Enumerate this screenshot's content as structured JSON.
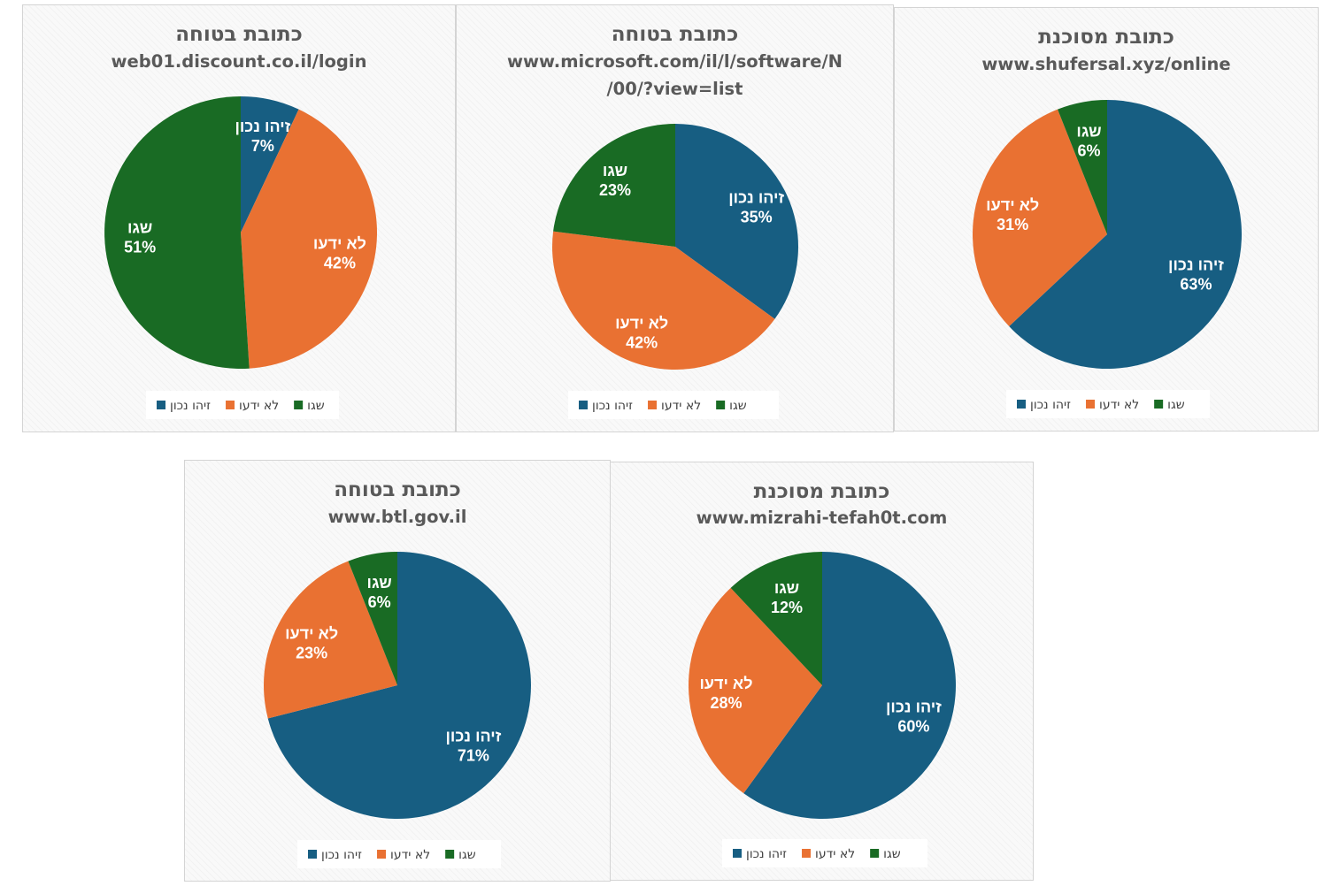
{
  "colors": {
    "correct": "#175e82",
    "unknown": "#e97132",
    "wrong": "#196b24"
  },
  "legend_labels": [
    "זיהו נכון",
    "לא ידעו",
    "שגו"
  ],
  "chart_data": [
    {
      "type": "pie",
      "title": "כתובת בטוחה",
      "subtitle_lines": [
        "web01.discount.co.il/login"
      ],
      "slices": [
        {
          "name": "זיהו נכון",
          "value": 7,
          "label": "7%"
        },
        {
          "name": "לא ידעו",
          "value": 42,
          "label": "42%"
        },
        {
          "name": "שגו",
          "value": 51,
          "label": "51%"
        }
      ],
      "legend_position": "bottom"
    },
    {
      "type": "pie",
      "title": "כתובת בטוחה",
      "subtitle_lines": [
        "www.microsoft.com/il/l/software/N",
        "/00/?view=list"
      ],
      "slices": [
        {
          "name": "זיהו נכון",
          "value": 35,
          "label": "35%"
        },
        {
          "name": "לא ידעו",
          "value": 42,
          "label": "42%"
        },
        {
          "name": "שגו",
          "value": 23,
          "label": "23%"
        }
      ],
      "legend_position": "bottom"
    },
    {
      "type": "pie",
      "title": "כתובת מסוכנת",
      "subtitle_lines": [
        "www.shufersal.xyz/online"
      ],
      "slices": [
        {
          "name": "זיהו נכון",
          "value": 63,
          "label": "63%"
        },
        {
          "name": "לא ידעו",
          "value": 31,
          "label": "31%"
        },
        {
          "name": "שגו",
          "value": 6,
          "label": "6%"
        }
      ],
      "legend_position": "bottom"
    },
    {
      "type": "pie",
      "title": "כתובת בטוחה",
      "subtitle_lines": [
        "www.btl.gov.il"
      ],
      "slices": [
        {
          "name": "זיהו נכון",
          "value": 71,
          "label": "71%"
        },
        {
          "name": "לא ידעו",
          "value": 23,
          "label": "23%"
        },
        {
          "name": "שגו",
          "value": 6,
          "label": "6%"
        }
      ],
      "legend_position": "bottom"
    },
    {
      "type": "pie",
      "title": "כתובת מסוכנת",
      "subtitle_lines": [
        "www.mizrahi-tefah0t.com"
      ],
      "slices": [
        {
          "name": "זיהו נכון",
          "value": 60,
          "label": "60%"
        },
        {
          "name": "לא ידעו",
          "value": 28,
          "label": "28%"
        },
        {
          "name": "שגו",
          "value": 12,
          "label": "12%"
        }
      ],
      "legend_position": "bottom"
    }
  ]
}
